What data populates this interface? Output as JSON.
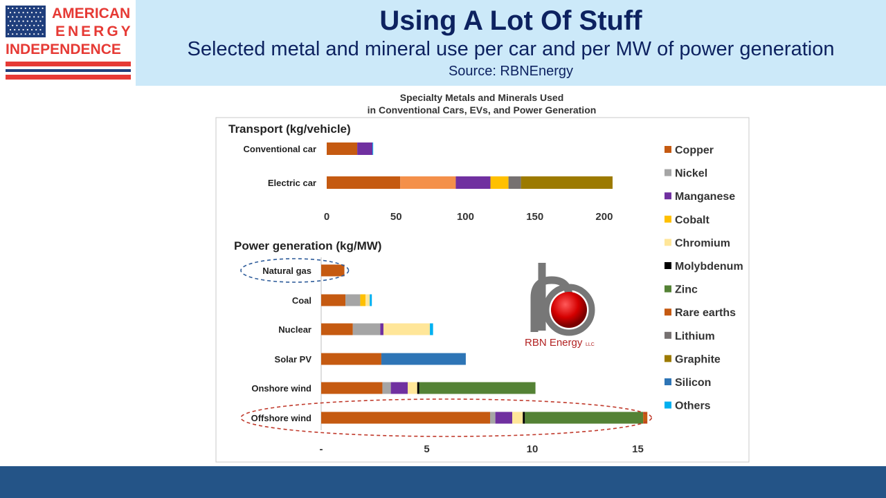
{
  "brand": {
    "line1": "AMERICAN",
    "line2": "ENERGY",
    "line3": "INDEPENDENCE",
    "flag_icon": "us-flag-icon",
    "colors": {
      "red": "#e63a35",
      "blue": "#1f3e7c"
    }
  },
  "header": {
    "title": "Using A Lot Of Stuff",
    "subtitle": "Selected metal and mineral use per car and per MW of power generation",
    "source": "Source: RBNEnergy",
    "background": "#cce9f9",
    "text_color": "#0d2260"
  },
  "footer": {
    "color": "#245487"
  },
  "watermark": {
    "text": "RBN Energy",
    "suffix": "LLC",
    "icon": "rbn-energy-logo-icon"
  },
  "chart_data": {
    "type": "bar",
    "orientation": "horizontal",
    "stacked": true,
    "title_line1": "Specialty Metals and Minerals Used",
    "title_line2": "in Conventional Cars, EVs, and Power Generation",
    "legend_position": "right",
    "materials": [
      {
        "name": "Copper",
        "color": "#c55a11"
      },
      {
        "name": "Nickel",
        "color": "#a5a5a5"
      },
      {
        "name": "Manganese",
        "color": "#7030a0"
      },
      {
        "name": "Cobalt",
        "color": "#ffc000"
      },
      {
        "name": "Chromium",
        "color": "#ffe699"
      },
      {
        "name": "Molybdenum",
        "color": "#000000"
      },
      {
        "name": "Zinc",
        "color": "#548235"
      },
      {
        "name": "Rare earths",
        "color": "#c55a11"
      },
      {
        "name": "Lithium",
        "color": "#767171"
      },
      {
        "name": "Graphite",
        "color": "#9c7a00"
      },
      {
        "name": "Silicon",
        "color": "#2e75b6"
      },
      {
        "name": "Others",
        "color": "#00b0f0"
      }
    ],
    "panels": [
      {
        "title": "Transport (kg/vehicle)",
        "xlim": [
          0,
          210
        ],
        "ticks": [
          0,
          50,
          100,
          150,
          200
        ],
        "tick_labels": [
          "0",
          "50",
          "100",
          "150",
          "200"
        ],
        "categories": [
          {
            "label": "Conventional car",
            "segments": [
              {
                "material": "Copper",
                "value": 22
              },
              {
                "material": "Manganese",
                "value": 11
              },
              {
                "material": "Others",
                "value": 0.5
              }
            ]
          },
          {
            "label": "Electric car",
            "segments": [
              {
                "material": "Copper",
                "value": 53
              },
              {
                "material": "Copper",
                "value": 40,
                "shade": "#f4904a"
              },
              {
                "material": "Manganese",
                "value": 25
              },
              {
                "material": "Cobalt",
                "value": 13
              },
              {
                "material": "Lithium",
                "value": 9
              },
              {
                "material": "Graphite",
                "value": 66
              }
            ]
          }
        ]
      },
      {
        "title": "Power generation (kg/MW)",
        "xlim": [
          0,
          16
        ],
        "ticks": [
          0,
          5,
          10,
          15
        ],
        "tick_labels": [
          "-",
          "5",
          "10",
          "15"
        ],
        "categories": [
          {
            "label": "Natural gas",
            "highlight": "blue",
            "segments": [
              {
                "material": "Copper",
                "value": 1.1
              }
            ]
          },
          {
            "label": "Coal",
            "segments": [
              {
                "material": "Copper",
                "value": 1.15
              },
              {
                "material": "Nickel",
                "value": 0.7
              },
              {
                "material": "Cobalt",
                "value": 0.25
              },
              {
                "material": "Chromium",
                "value": 0.2
              },
              {
                "material": "Others",
                "value": 0.1
              }
            ]
          },
          {
            "label": "Nuclear",
            "segments": [
              {
                "material": "Copper",
                "value": 1.5
              },
              {
                "material": "Nickel",
                "value": 1.3
              },
              {
                "material": "Manganese",
                "value": 0.15
              },
              {
                "material": "Chromium",
                "value": 2.2
              },
              {
                "material": "Others",
                "value": 0.15
              }
            ]
          },
          {
            "label": "Solar PV",
            "segments": [
              {
                "material": "Copper",
                "value": 2.85
              },
              {
                "material": "Silicon",
                "value": 4.0
              }
            ]
          },
          {
            "label": "Onshore wind",
            "segments": [
              {
                "material": "Copper",
                "value": 2.9
              },
              {
                "material": "Nickel",
                "value": 0.4
              },
              {
                "material": "Manganese",
                "value": 0.8
              },
              {
                "material": "Chromium",
                "value": 0.45
              },
              {
                "material": "Molybdenum",
                "value": 0.1
              },
              {
                "material": "Zinc",
                "value": 5.5
              }
            ]
          },
          {
            "label": "Offshore wind",
            "highlight": "red",
            "segments": [
              {
                "material": "Copper",
                "value": 8.0
              },
              {
                "material": "Nickel",
                "value": 0.25
              },
              {
                "material": "Manganese",
                "value": 0.8
              },
              {
                "material": "Chromium",
                "value": 0.5
              },
              {
                "material": "Molybdenum",
                "value": 0.1
              },
              {
                "material": "Zinc",
                "value": 5.6
              },
              {
                "material": "Rare earths",
                "value": 0.2
              }
            ]
          }
        ]
      }
    ]
  }
}
